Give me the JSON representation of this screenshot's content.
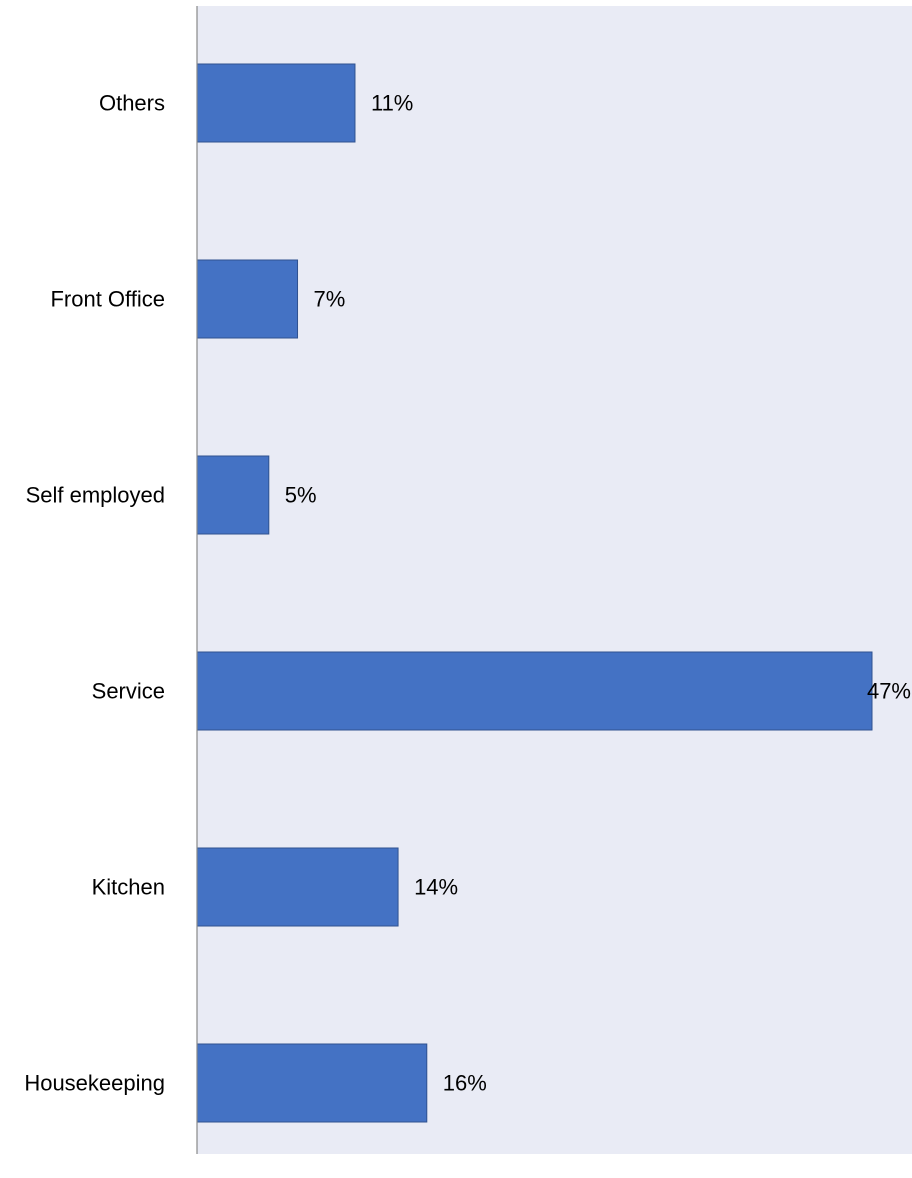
{
  "chart_data": {
    "type": "bar",
    "orientation": "horizontal",
    "categories": [
      "Others",
      "Front Office",
      "Self employed",
      "Service",
      "Kitchen",
      "Housekeeping"
    ],
    "values": [
      11,
      7,
      5,
      47,
      14,
      16
    ],
    "value_labels": [
      "11%",
      "7%",
      "5%",
      "47%",
      "14%",
      "16%"
    ],
    "title": "",
    "xlabel": "",
    "ylabel": "",
    "xlim": [
      0,
      47
    ],
    "grid": false,
    "legend": "none",
    "colors": {
      "bar": "#4472C4",
      "bar_border": "#2F528F",
      "plot_background": "#E9EBF5",
      "axis_line": "#888888"
    }
  }
}
